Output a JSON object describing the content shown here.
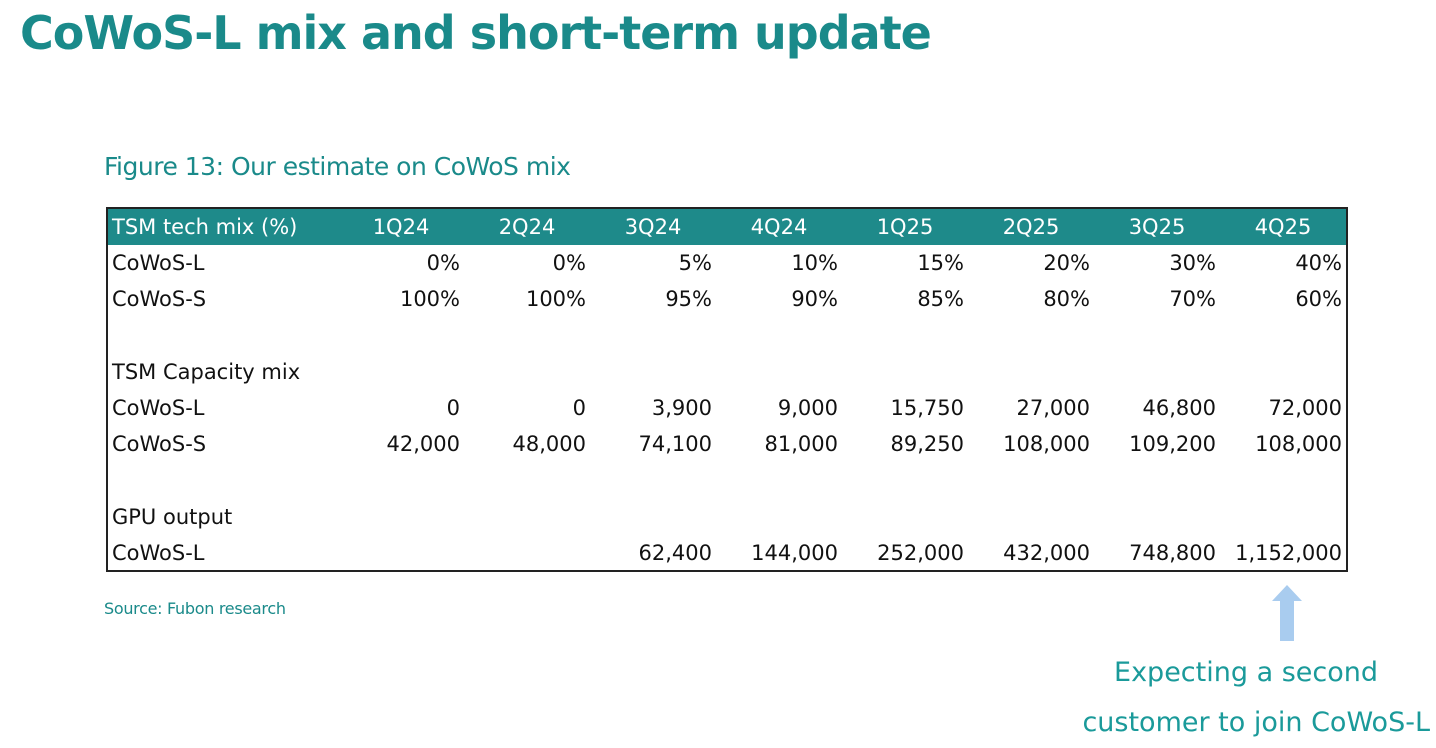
{
  "slide": {
    "title": "CoWoS-L mix and short-term update"
  },
  "figure": {
    "caption": "Figure 13: Our estimate on CoWoS mix",
    "source": "Source: Fubon research"
  },
  "table": {
    "header": {
      "label": "TSM tech mix (%)",
      "quarters": [
        "1Q24",
        "2Q24",
        "3Q24",
        "4Q24",
        "1Q25",
        "2Q25",
        "3Q25",
        "4Q25"
      ]
    },
    "tech_mix": [
      {
        "label": "CoWoS-L",
        "values": [
          "0%",
          "0%",
          "5%",
          "10%",
          "15%",
          "20%",
          "30%",
          "40%"
        ]
      },
      {
        "label": "CoWoS-S",
        "values": [
          "100%",
          "100%",
          "95%",
          "90%",
          "85%",
          "80%",
          "70%",
          "60%"
        ]
      }
    ],
    "capacity_heading": "TSM Capacity mix",
    "capacity_mix": [
      {
        "label": "CoWoS-L",
        "values": [
          "0",
          "0",
          "3,900",
          "9,000",
          "15,750",
          "27,000",
          "46,800",
          "72,000"
        ]
      },
      {
        "label": "CoWoS-S",
        "values": [
          "42,000",
          "48,000",
          "74,100",
          "81,000",
          "89,250",
          "108,000",
          "109,200",
          "108,000"
        ]
      }
    ],
    "gpu_heading": "GPU output",
    "gpu_output": [
      {
        "label": "CoWoS-L",
        "values": [
          "",
          "",
          "62,400",
          "144,000",
          "252,000",
          "432,000",
          "748,800",
          "1,152,000"
        ]
      }
    ]
  },
  "callout": {
    "line1": "Expecting a second",
    "line2": "customer to join CoWoS-L",
    "arrow_icon": "up-arrow-icon",
    "arrow_color": "#a9ccef"
  },
  "colors": {
    "accent": "#1a8a8a",
    "header_bg": "#1e8a8a"
  }
}
